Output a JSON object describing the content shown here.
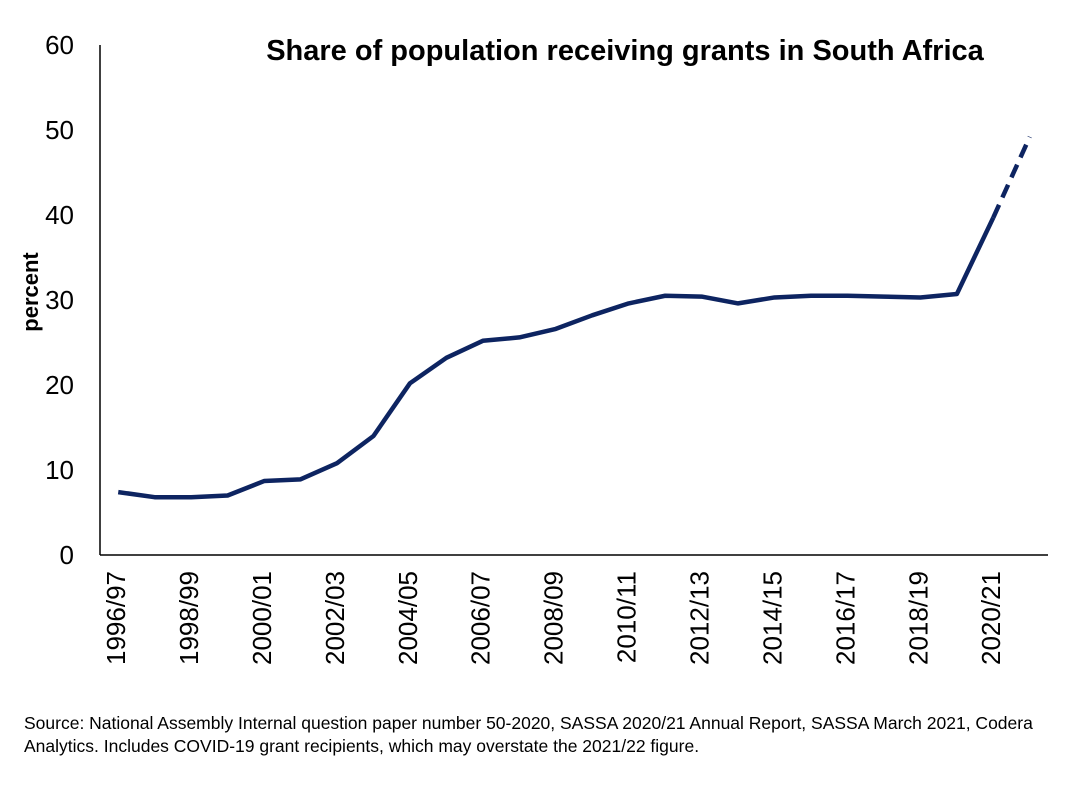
{
  "chart_data": {
    "type": "line",
    "title": "Share of population receiving grants in South Africa",
    "ylabel": "percent",
    "xlabel": "",
    "ylim": [
      0,
      60
    ],
    "yticks": [
      0,
      10,
      20,
      30,
      40,
      50,
      60
    ],
    "grid": false,
    "legend": "none",
    "line_color": "#0d2461",
    "categories": [
      "1996/97",
      "1997/98",
      "1998/99",
      "1999/00",
      "2000/01",
      "2001/02",
      "2002/03",
      "2003/04",
      "2004/05",
      "2005/06",
      "2006/07",
      "2007/08",
      "2008/09",
      "2009/10",
      "2010/11",
      "2011/12",
      "2012/13",
      "2013/14",
      "2014/15",
      "2015/16",
      "2016/17",
      "2017/18",
      "2018/19",
      "2019/20",
      "2020/21",
      "2021/22"
    ],
    "tick_labels": [
      "1996/97",
      "1998/99",
      "2000/01",
      "2002/03",
      "2004/05",
      "2006/07",
      "2008/09",
      "2010/11",
      "2012/13",
      "2014/15",
      "2016/17",
      "2018/19",
      "2020/21"
    ],
    "series": [
      {
        "values": [
          7.4,
          6.8,
          6.8,
          7.0,
          8.7,
          8.9,
          10.8,
          14.0,
          20.2,
          23.2,
          25.2,
          25.6,
          26.6,
          28.2,
          29.6,
          30.5,
          30.4,
          29.6,
          30.3,
          30.5,
          30.5,
          30.4,
          30.3,
          30.7,
          39.7,
          49.2
        ],
        "dashed_from_index": 24
      }
    ],
    "source": "Source: National Assembly Internal question paper number 50-2020, SASSA 2020/21 Annual Report, SASSA March 2021, Codera Analytics. Includes COVID-19 grant recipients, which may overstate the 2021/22 figure."
  }
}
